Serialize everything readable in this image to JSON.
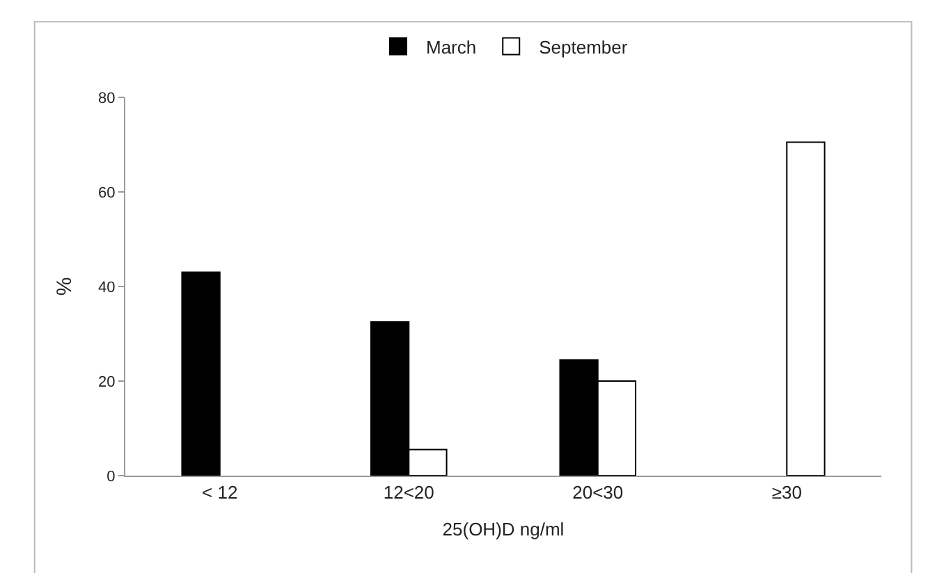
{
  "chart_data": {
    "type": "bar",
    "xlabel": "25(OH)D ng/ml",
    "ylabel": "%",
    "categories": [
      "< 12",
      "12<20",
      "20<30",
      "≥30"
    ],
    "series": [
      {
        "name": "March",
        "color": "#000000",
        "values": [
          43,
          32.5,
          24.5,
          null
        ]
      },
      {
        "name": "September",
        "color": "#ffffff",
        "values": [
          null,
          5.5,
          20,
          70.5
        ]
      }
    ],
    "ylim": [
      0,
      80
    ],
    "yticks": [
      0,
      20,
      40,
      60,
      80
    ],
    "legend": "top"
  }
}
